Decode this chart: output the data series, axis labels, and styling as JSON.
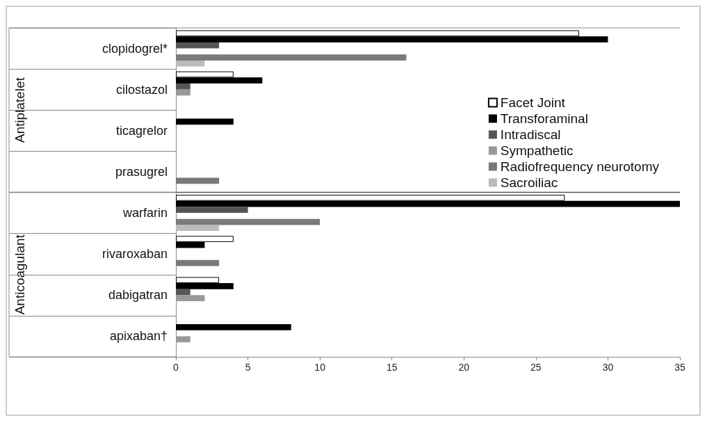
{
  "chart_data": {
    "type": "bar",
    "orientation": "horizontal",
    "categories": [
      "clopidogrel*",
      "cilostazol",
      "ticagrelor",
      "prasugrel",
      "warfarin",
      "rivaroxaban",
      "dabigatran",
      "apixaban†"
    ],
    "series": [
      {
        "name": "Facet Joint",
        "color": "#ffffff",
        "values": [
          28,
          4,
          0,
          0,
          27,
          4,
          3,
          0
        ]
      },
      {
        "name": "Transforaminal",
        "color": "#000000",
        "values": [
          30,
          6,
          4,
          0,
          35,
          2,
          4,
          8
        ]
      },
      {
        "name": "Intradiscal",
        "color": "#555555",
        "values": [
          3,
          1,
          0,
          0,
          5,
          0,
          1,
          0
        ]
      },
      {
        "name": "Sympathetic",
        "color": "#999999",
        "values": [
          0,
          1,
          0,
          0,
          0,
          0,
          2,
          1
        ]
      },
      {
        "name": "Radiofrequency neurotomy",
        "color": "#7a7a7a",
        "values": [
          16,
          0,
          0,
          3,
          10,
          3,
          0,
          0
        ]
      },
      {
        "name": "Sacroiliac",
        "color": "#bbbbbb",
        "values": [
          2,
          0,
          0,
          0,
          3,
          0,
          0,
          0
        ]
      }
    ],
    "xlim": [
      0,
      35
    ],
    "xticks": [
      0,
      5,
      10,
      15,
      20,
      25,
      30,
      35
    ],
    "annotations": [
      "Antiplatelet",
      "Anticoagulant"
    ],
    "grid": false,
    "legend": "top right"
  }
}
